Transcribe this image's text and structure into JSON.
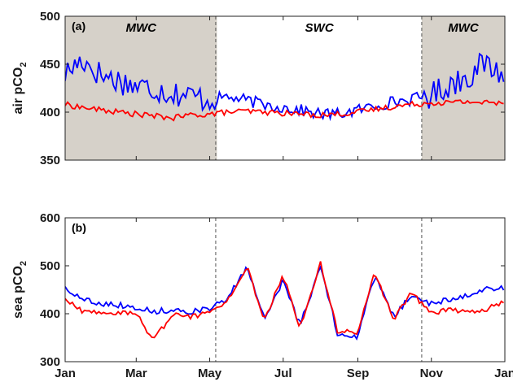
{
  "chart_data": [
    {
      "type": "line",
      "panel_label": "(a)",
      "ylabel": "air pCO",
      "ylabel_subscript": "2",
      "ylim": [
        350,
        500
      ],
      "yticks": [
        350,
        400,
        450,
        500
      ],
      "x_range": [
        "Jan",
        "Jan"
      ],
      "grid": false,
      "shaded_regions": [
        {
          "label": "MWC",
          "from": "Jan 1",
          "to": "May 6",
          "color": "#d6d1c9"
        },
        {
          "label": "MWC",
          "from": "Oct 24",
          "to": "Dec 31",
          "color": "#d6d1c9"
        }
      ],
      "unshaded_label": "SWC",
      "vlines": [
        "May 6",
        "Oct 24"
      ],
      "series": [
        {
          "color": "#0000ff",
          "points": [
            {
              "x": "Jan 1",
              "y": 440
            },
            {
              "x": "Jan 15",
              "y": 455
            },
            {
              "x": "Feb 1",
              "y": 438
            },
            {
              "x": "Feb 15",
              "y": 433
            },
            {
              "x": "Mar 1",
              "y": 427
            },
            {
              "x": "Mar 15",
              "y": 425
            },
            {
              "x": "Apr 1",
              "y": 420
            },
            {
              "x": "Apr 15",
              "y": 417
            },
            {
              "x": "May 1",
              "y": 413
            },
            {
              "x": "May 15",
              "y": 416
            },
            {
              "x": "Jun 1",
              "y": 412
            },
            {
              "x": "Jun 15",
              "y": 408
            },
            {
              "x": "Jul 1",
              "y": 405
            },
            {
              "x": "Jul 15",
              "y": 402
            },
            {
              "x": "Aug 1",
              "y": 398
            },
            {
              "x": "Aug 15",
              "y": 398
            },
            {
              "x": "Sep 1",
              "y": 402
            },
            {
              "x": "Sep 15",
              "y": 407
            },
            {
              "x": "Oct 1",
              "y": 411
            },
            {
              "x": "Oct 15",
              "y": 413
            },
            {
              "x": "Nov 1",
              "y": 418
            },
            {
              "x": "Nov 15",
              "y": 428
            },
            {
              "x": "Dec 1",
              "y": 438
            },
            {
              "x": "Dec 15",
              "y": 450
            },
            {
              "x": "Dec 31",
              "y": 440
            }
          ]
        },
        {
          "color": "#ff0000",
          "points": [
            {
              "x": "Jan 1",
              "y": 408
            },
            {
              "x": "Jan 15",
              "y": 405
            },
            {
              "x": "Feb 1",
              "y": 402
            },
            {
              "x": "Feb 15",
              "y": 400
            },
            {
              "x": "Mar 1",
              "y": 398
            },
            {
              "x": "Mar 15",
              "y": 396
            },
            {
              "x": "Apr 1",
              "y": 394
            },
            {
              "x": "Apr 15",
              "y": 397
            },
            {
              "x": "May 1",
              "y": 398
            },
            {
              "x": "May 15",
              "y": 400
            },
            {
              "x": "Jun 1",
              "y": 401
            },
            {
              "x": "Jun 15",
              "y": 400
            },
            {
              "x": "Jul 1",
              "y": 399
            },
            {
              "x": "Jul 15",
              "y": 398
            },
            {
              "x": "Aug 1",
              "y": 397
            },
            {
              "x": "Aug 15",
              "y": 398
            },
            {
              "x": "Sep 1",
              "y": 400
            },
            {
              "x": "Sep 15",
              "y": 403
            },
            {
              "x": "Oct 1",
              "y": 406
            },
            {
              "x": "Oct 15",
              "y": 408
            },
            {
              "x": "Nov 1",
              "y": 410
            },
            {
              "x": "Nov 15",
              "y": 410
            },
            {
              "x": "Dec 1",
              "y": 411
            },
            {
              "x": "Dec 15",
              "y": 410
            },
            {
              "x": "Dec 31",
              "y": 409
            }
          ]
        }
      ]
    },
    {
      "type": "line",
      "panel_label": "(b)",
      "ylabel": "sea pCO",
      "ylabel_subscript": "2",
      "ylim": [
        300,
        600
      ],
      "yticks": [
        300,
        400,
        500,
        600
      ],
      "xticks": [
        "Jan",
        "Mar",
        "May",
        "Jul",
        "Sep",
        "Nov",
        "Jan"
      ],
      "grid": false,
      "vlines": [
        "May 6",
        "Oct 24"
      ],
      "series": [
        {
          "color": "#0000ff",
          "points": [
            {
              "x": "Jan 1",
              "y": 455
            },
            {
              "x": "Jan 15",
              "y": 430
            },
            {
              "x": "Feb 1",
              "y": 422
            },
            {
              "x": "Feb 15",
              "y": 418
            },
            {
              "x": "Mar 1",
              "y": 413
            },
            {
              "x": "Mar 15",
              "y": 405
            },
            {
              "x": "Apr 1",
              "y": 408
            },
            {
              "x": "Apr 15",
              "y": 405
            },
            {
              "x": "May 1",
              "y": 410
            },
            {
              "x": "May 15",
              "y": 430
            },
            {
              "x": "Jun 1",
              "y": 495
            },
            {
              "x": "Jun 15",
              "y": 390
            },
            {
              "x": "Jul 1",
              "y": 470
            },
            {
              "x": "Jul 15",
              "y": 375
            },
            {
              "x": "Aug 1",
              "y": 500
            },
            {
              "x": "Aug 15",
              "y": 360
            },
            {
              "x": "Sep 1",
              "y": 352
            },
            {
              "x": "Sep 15",
              "y": 480
            },
            {
              "x": "Oct 1",
              "y": 392
            },
            {
              "x": "Oct 15",
              "y": 440
            },
            {
              "x": "Nov 1",
              "y": 420
            },
            {
              "x": "Nov 15",
              "y": 430
            },
            {
              "x": "Dec 1",
              "y": 440
            },
            {
              "x": "Dec 15",
              "y": 450
            },
            {
              "x": "Dec 31",
              "y": 455
            }
          ]
        },
        {
          "color": "#ff0000",
          "points": [
            {
              "x": "Jan 1",
              "y": 430
            },
            {
              "x": "Jan 15",
              "y": 405
            },
            {
              "x": "Feb 1",
              "y": 403
            },
            {
              "x": "Feb 15",
              "y": 402
            },
            {
              "x": "Mar 1",
              "y": 400
            },
            {
              "x": "Mar 15",
              "y": 345
            },
            {
              "x": "Apr 1",
              "y": 400
            },
            {
              "x": "Apr 15",
              "y": 393
            },
            {
              "x": "May 1",
              "y": 402
            },
            {
              "x": "May 15",
              "y": 425
            },
            {
              "x": "Jun 1",
              "y": 500
            },
            {
              "x": "Jun 15",
              "y": 385
            },
            {
              "x": "Jul 1",
              "y": 480
            },
            {
              "x": "Jul 15",
              "y": 370
            },
            {
              "x": "Aug 1",
              "y": 505
            },
            {
              "x": "Aug 15",
              "y": 365
            },
            {
              "x": "Sep 1",
              "y": 360
            },
            {
              "x": "Sep 15",
              "y": 485
            },
            {
              "x": "Oct 1",
              "y": 388
            },
            {
              "x": "Oct 15",
              "y": 445
            },
            {
              "x": "Nov 1",
              "y": 400
            },
            {
              "x": "Nov 15",
              "y": 408
            },
            {
              "x": "Dec 1",
              "y": 405
            },
            {
              "x": "Dec 15",
              "y": 408
            },
            {
              "x": "Dec 31",
              "y": 425
            }
          ]
        }
      ]
    }
  ]
}
